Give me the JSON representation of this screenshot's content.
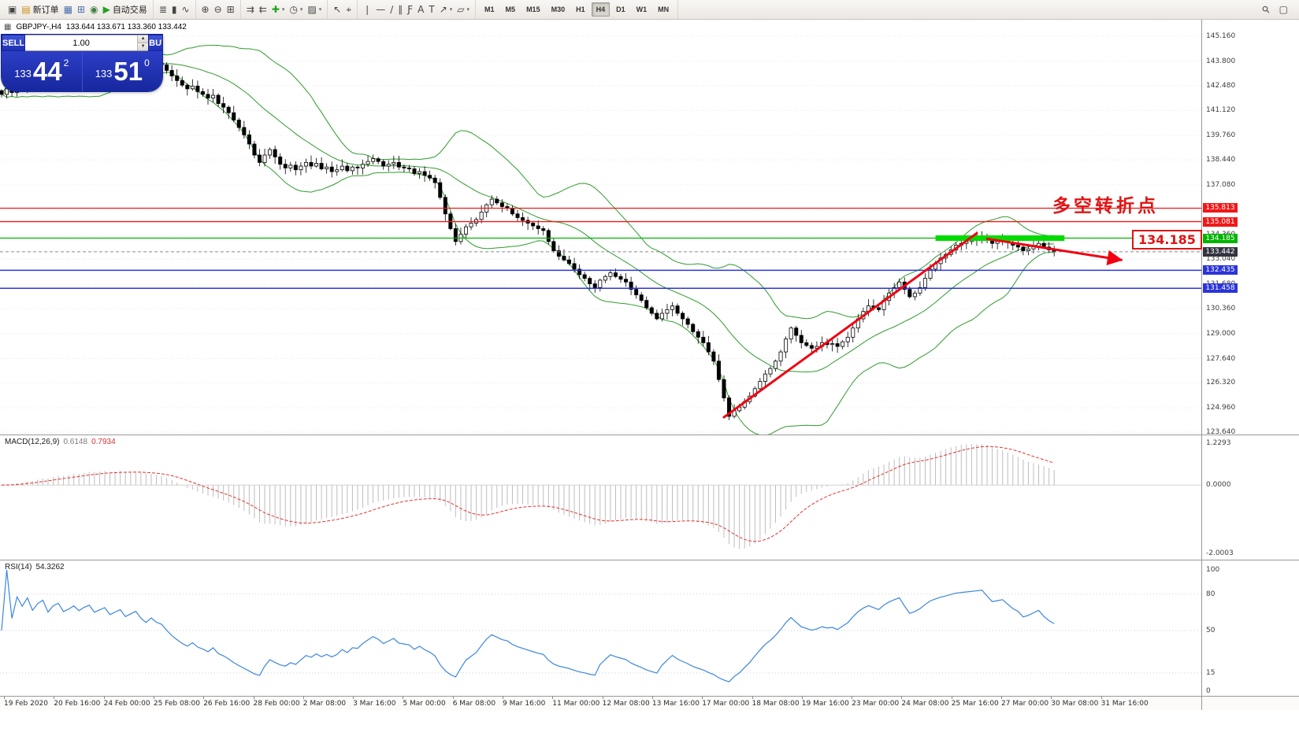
{
  "toolbar": {
    "groups": [
      {
        "items": [
          {
            "name": "terminal-icon",
            "glyph": "▣"
          },
          {
            "name": "new-order-button",
            "glyph": "▤",
            "label": "新订单",
            "color": "#c89010"
          },
          {
            "name": "market-watch-icon",
            "glyph": "▦",
            "color": "#4a6fb0"
          },
          {
            "name": "navigator-icon",
            "glyph": "⊞",
            "color": "#4a6fb0"
          },
          {
            "name": "connectivity-icon",
            "glyph": "◉",
            "color": "#3f7f3f"
          },
          {
            "name": "auto-trading-button",
            "glyph": "▶",
            "label": "自动交易",
            "color": "#1fa31f"
          }
        ]
      },
      {
        "items": [
          {
            "name": "bar-chart-icon",
            "glyph": "≣"
          },
          {
            "name": "candlestick-icon",
            "glyph": "▮"
          },
          {
            "name": "line-chart-icon",
            "glyph": "∿"
          }
        ]
      },
      {
        "items": [
          {
            "name": "zoom-in-icon",
            "glyph": "⊕"
          },
          {
            "name": "zoom-out-icon",
            "glyph": "⊖"
          },
          {
            "name": "grid-icon",
            "glyph": "⊞"
          }
        ]
      },
      {
        "items": [
          {
            "name": "auto-scroll-icon",
            "glyph": "⇉"
          },
          {
            "name": "chart-shift-icon",
            "glyph": "⇇"
          },
          {
            "name": "indicators-add-icon",
            "glyph": "✚",
            "color": "#1fa31f",
            "caret": true
          },
          {
            "name": "periods-icon",
            "glyph": "◷",
            "caret": true
          },
          {
            "name": "templates-icon",
            "glyph": "▨",
            "caret": true
          }
        ]
      },
      {
        "items": [
          {
            "name": "cursor-icon",
            "glyph": "↖"
          },
          {
            "name": "crosshair-icon",
            "glyph": "⌖"
          }
        ]
      },
      {
        "items": [
          {
            "name": "vertical-line-icon",
            "glyph": "❘"
          },
          {
            "name": "horizontal-line-icon",
            "glyph": "—"
          },
          {
            "name": "trendline-icon",
            "glyph": "∕"
          },
          {
            "name": "channel-icon",
            "glyph": "∥"
          },
          {
            "name": "fibonacci-icon",
            "glyph": "Ƒ"
          },
          {
            "name": "text-icon",
            "glyph": "A"
          },
          {
            "name": "label-icon",
            "glyph": "T"
          },
          {
            "name": "arrows-icon",
            "glyph": "↗",
            "caret": true
          },
          {
            "name": "shapes-icon",
            "glyph": "▱",
            "caret": true
          }
        ]
      }
    ],
    "timeframes": [
      "M1",
      "M5",
      "M15",
      "M30",
      "H1",
      "H4",
      "D1",
      "W1",
      "MN"
    ],
    "active_timeframe": "H4",
    "right_icons": [
      {
        "name": "search-icon",
        "glyph": "⚲"
      },
      {
        "name": "new-window-icon",
        "glyph": "▢"
      }
    ]
  },
  "chart_header": {
    "symbol": "GBPJPY-,H4",
    "ohlc": "133.644 133.671 133.360 133.442"
  },
  "trade_panel": {
    "sell_label": "SELL",
    "buy_label": "BUY",
    "volume": "1.00",
    "sell": {
      "prefix": "133",
      "big": "44",
      "sup": "2"
    },
    "buy": {
      "prefix": "133",
      "big": "51",
      "sup": "0"
    }
  },
  "annotations": {
    "turning_point": "多空转折点",
    "level_callout": "134.185"
  },
  "indicators": {
    "macd": {
      "label": "MACD(12,26,9)",
      "value": "0.6148",
      "signal": "0.7934",
      "axis": [
        "1.2293",
        "0.0000",
        "-2.0003"
      ]
    },
    "rsi": {
      "label": "RSI(14)",
      "value": "54.3262",
      "axis": [
        "100",
        "80",
        "50",
        "15",
        "0"
      ],
      "levels": [
        80,
        50,
        15
      ]
    }
  },
  "chart_data": {
    "type": "candlestick",
    "symbol": "GBPJPY",
    "timeframe": "H4",
    "price_axis": {
      "min": 123.64,
      "max": 145.16,
      "grid_labels": [
        "145.160",
        "143.800",
        "142.480",
        "141.120",
        "139.760",
        "138.440",
        "137.080",
        "135.720",
        "134.360",
        "133.040",
        "131.680",
        "130.360",
        "129.000",
        "127.640",
        "126.320",
        "124.960",
        "123.640"
      ]
    },
    "bollinger_period": 20,
    "closes": [
      142.0,
      142.3,
      142.1,
      142.5,
      142.4,
      142.7,
      142.5,
      142.8,
      143.0,
      142.7,
      143.1,
      143.3,
      143.0,
      143.2,
      143.5,
      143.3,
      143.6,
      143.8,
      143.5,
      143.7,
      143.9,
      143.6,
      143.8,
      144.0,
      143.7,
      143.9,
      144.1,
      143.8,
      143.6,
      143.9,
      143.7,
      143.6,
      143.3,
      143.0,
      142.75,
      142.5,
      142.3,
      142.45,
      142.15,
      142.0,
      141.8,
      141.95,
      141.5,
      141.3,
      141.0,
      140.6,
      140.2,
      139.8,
      139.3,
      138.7,
      138.3,
      138.7,
      139.0,
      138.6,
      138.2,
      138.0,
      138.15,
      137.9,
      138.1,
      138.3,
      138.1,
      138.25,
      137.95,
      138.05,
      137.8,
      137.9,
      138.1,
      137.85,
      138.05,
      138.0,
      138.2,
      138.35,
      138.5,
      138.35,
      138.1,
      138.2,
      138.3,
      138.05,
      138.0,
      137.95,
      137.7,
      137.8,
      137.6,
      137.45,
      137.2,
      136.4,
      135.5,
      134.7,
      134.0,
      134.4,
      134.8,
      135.0,
      135.2,
      135.6,
      136.0,
      136.3,
      136.1,
      135.9,
      135.8,
      135.5,
      135.3,
      135.15,
      135.0,
      134.85,
      134.7,
      134.6,
      134.0,
      133.5,
      133.2,
      133.0,
      132.8,
      132.5,
      132.2,
      132.0,
      131.7,
      131.5,
      131.9,
      132.1,
      132.3,
      132.1,
      131.95,
      131.8,
      131.4,
      131.1,
      130.8,
      130.4,
      130.1,
      129.8,
      130.1,
      130.3,
      130.5,
      130.1,
      129.8,
      129.5,
      129.1,
      128.8,
      128.5,
      128.0,
      127.5,
      126.5,
      125.5,
      124.5,
      124.8,
      125.0,
      125.3,
      125.6,
      126.0,
      126.4,
      126.8,
      127.1,
      127.5,
      128.0,
      128.7,
      129.3,
      128.9,
      128.5,
      128.35,
      128.2,
      128.3,
      128.5,
      128.4,
      128.45,
      128.3,
      128.55,
      128.8,
      129.3,
      129.8,
      130.2,
      130.5,
      130.4,
      130.3,
      130.8,
      131.2,
      131.5,
      131.8,
      131.4,
      131.0,
      131.2,
      131.5,
      132.0,
      132.5,
      132.8,
      133.1,
      133.3,
      133.55,
      133.8,
      133.9,
      134.0,
      134.1,
      134.2,
      134.3,
      134.1,
      133.9,
      134.0,
      134.1,
      133.95,
      133.8,
      133.7,
      133.5,
      133.6,
      133.75,
      133.9,
      133.7,
      133.55,
      133.442
    ],
    "price_lines": [
      {
        "label": "135.813",
        "value": 135.813,
        "color": "#f01818",
        "type": "resistance"
      },
      {
        "label": "135.081",
        "value": 135.081,
        "color": "#f01818",
        "type": "resistance"
      },
      {
        "label": "134.185",
        "value": 134.185,
        "color": "#00b400",
        "type": "key-level"
      },
      {
        "label": "133.442",
        "value": 133.442,
        "color": "#33343f",
        "type": "current-price"
      },
      {
        "label": "132.435",
        "value": 132.435,
        "color": "#2b34d8",
        "type": "support"
      },
      {
        "label": "131.458",
        "value": 131.458,
        "color": "#2b34d8",
        "type": "support"
      }
    ],
    "highlight_zone": {
      "price": 134.185,
      "i1": 181,
      "i2": 206,
      "color": "#00dc00"
    },
    "trend_lines": [
      {
        "name": "uptrend-line",
        "i1": 140,
        "p1": 124.45,
        "i2": 189,
        "p2": 134.45,
        "arrow": false
      },
      {
        "name": "forecast-arrow",
        "i1": 191,
        "p1": 134.15,
        "i2": 217,
        "p2": 133.0,
        "arrow": true
      }
    ],
    "trend_color": "#f00012",
    "time_labels": [
      "19 Feb 2020",
      "20 Feb 16:00",
      "24 Feb 00:00",
      "25 Feb 08:00",
      "26 Feb 16:00",
      "28 Feb 00:00",
      "2 Mar 08:00",
      "3 Mar 16:00",
      "5 Mar 00:00",
      "6 Mar 08:00",
      "9 Mar 16:00",
      "11 Mar 00:00",
      "12 Mar 08:00",
      "13 Mar 16:00",
      "17 Mar 00:00",
      "18 Mar 08:00",
      "19 Mar 16:00",
      "23 Mar 00:00",
      "24 Mar 08:00",
      "25 Mar 16:00",
      "27 Mar 00:00",
      "30 Mar 08:00",
      "31 Mar 16:00"
    ],
    "colors": {
      "bull": "#ffffff",
      "bear": "#000000",
      "bollinger": "#2e9b2e",
      "macd_hist": "#bdbdbd",
      "macd_signal": "#e23434",
      "rsi_line": "#3b86dd",
      "grid": "#e6e6e6"
    }
  }
}
